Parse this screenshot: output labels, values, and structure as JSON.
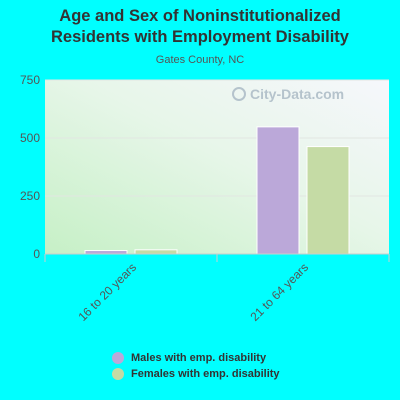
{
  "chart_data": {
    "type": "bar",
    "title": "Age and Sex of Noninstitutionalized\nResidents with Employment Disability",
    "subtitle": "Gates County, NC",
    "categories": [
      "16 to 20 years",
      "21 to 64 years"
    ],
    "series": [
      {
        "name": "Males with emp. disability",
        "values": [
          15,
          548
        ],
        "color": "#bba8d9"
      },
      {
        "name": "Females with emp. disability",
        "values": [
          18,
          463
        ],
        "color": "#c5dba5"
      }
    ],
    "ylim": [
      0,
      750
    ],
    "yticks": [
      0,
      250,
      500,
      750
    ],
    "ytick_labels": [
      "0",
      "250",
      "500",
      "750"
    ],
    "grid": true,
    "legend_position": "bottom"
  },
  "watermark": {
    "text": "City-Data.com",
    "icon": "magnifier-icon"
  },
  "colors": {
    "background": "#00ffff"
  }
}
